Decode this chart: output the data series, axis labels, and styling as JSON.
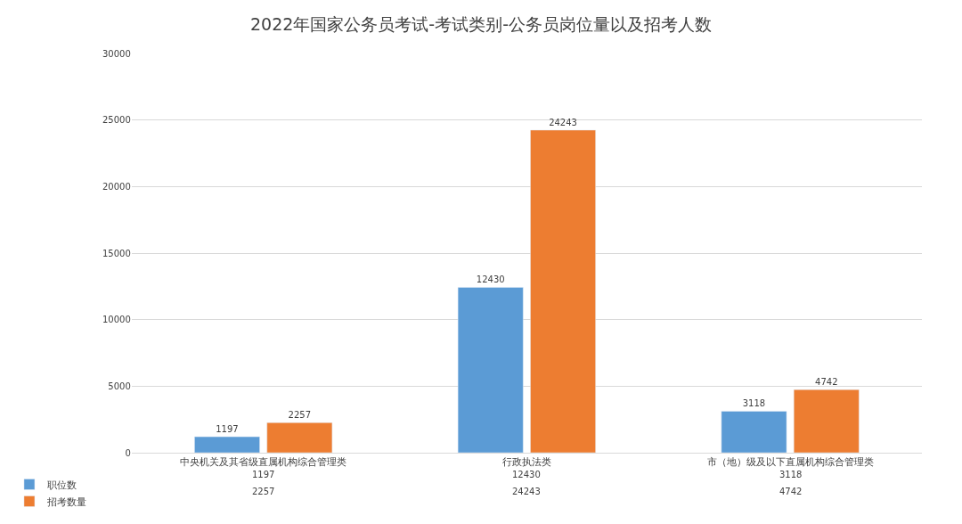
{
  "chart_data": {
    "type": "bar",
    "title": "2022年国家公务员考试-考试类别-公务员岗位量以及招考人数",
    "categories": [
      "中央机关及其省级直属机构综合管理类",
      "行政执法类",
      "市（地）级及以下直属机构综合管理类"
    ],
    "series": [
      {
        "name": "职位数",
        "color": "#5b9bd5",
        "values": [
          1197,
          12430,
          3118
        ],
        "value_labels": [
          "1197",
          "12430",
          "3118"
        ]
      },
      {
        "name": "招考数量",
        "color": "#ed7d31",
        "values": [
          2257,
          24243,
          4742
        ],
        "value_labels": [
          "2257",
          "24243",
          "4742"
        ]
      }
    ],
    "ylim": [
      0,
      30000
    ],
    "yticks": [
      0,
      5000,
      10000,
      15000,
      20000,
      25000,
      30000
    ],
    "annotations": [
      "1197",
      "12430",
      "3118",
      "2257",
      "24243",
      "4742"
    ],
    "grid": "y",
    "legend": "bottom left"
  }
}
